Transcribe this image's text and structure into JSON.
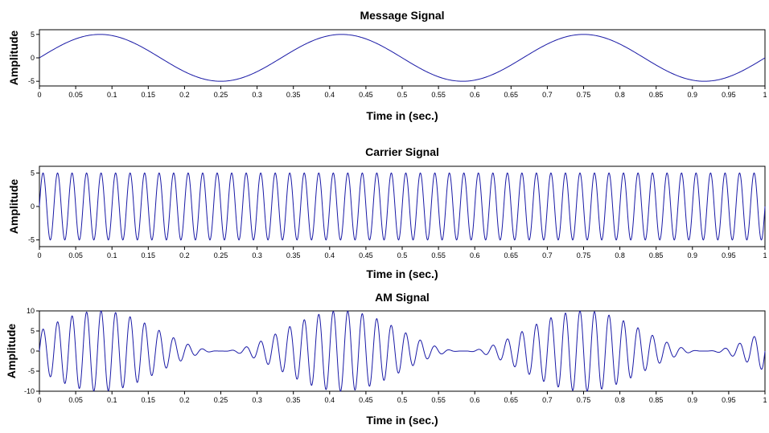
{
  "colors": {
    "line": "#1a1aa6",
    "axes": "#000000",
    "background": "#ffffff"
  },
  "chart_data": [
    {
      "type": "line",
      "title": "Message Signal",
      "xlabel": "Time in (sec.)",
      "ylabel": "Amplitude",
      "xlim": [
        0,
        1
      ],
      "ylim": [
        -6,
        6
      ],
      "xticks": [
        0,
        0.05,
        0.1,
        0.15,
        0.2,
        0.25,
        0.3,
        0.35,
        0.4,
        0.45,
        0.5,
        0.55,
        0.6,
        0.65,
        0.7,
        0.75,
        0.8,
        0.85,
        0.9,
        0.95,
        1
      ],
      "xtick_labels": [
        "0",
        "0.05",
        "0.1",
        "0.15",
        "0.2",
        "0.25",
        "0.3",
        "0.35",
        "0.4",
        "0.45",
        "0.5",
        "0.55",
        "0.6",
        "0.65",
        "0.7",
        "0.75",
        "0.8",
        "0.85",
        "0.9",
        "0.95",
        "1"
      ],
      "yticks": [
        -5,
        0,
        5
      ],
      "ytick_labels": [
        "-5",
        "0",
        "5"
      ],
      "grid": false,
      "series": [
        {
          "function": "5*sin(2*pi*3*t)",
          "amplitude": 5,
          "frequency_hz": 3,
          "t_start": 0,
          "t_end": 1,
          "samples": 800
        }
      ]
    },
    {
      "type": "line",
      "title": "Carrier Signal",
      "xlabel": "Time in (sec.)",
      "ylabel": "Amplitude",
      "xlim": [
        0,
        1
      ],
      "ylim": [
        -6,
        6
      ],
      "xticks": [
        0,
        0.05,
        0.1,
        0.15,
        0.2,
        0.25,
        0.3,
        0.35,
        0.4,
        0.45,
        0.5,
        0.55,
        0.6,
        0.65,
        0.7,
        0.75,
        0.8,
        0.85,
        0.9,
        0.95,
        1
      ],
      "xtick_labels": [
        "0",
        "0.05",
        "0.1",
        "0.15",
        "0.2",
        "0.25",
        "0.3",
        "0.35",
        "0.4",
        "0.45",
        "0.5",
        "0.55",
        "0.6",
        "0.65",
        "0.7",
        "0.75",
        "0.8",
        "0.85",
        "0.9",
        "0.95",
        "1"
      ],
      "yticks": [
        -5,
        0,
        5
      ],
      "ytick_labels": [
        "-5",
        "0",
        "5"
      ],
      "grid": false,
      "series": [
        {
          "function": "5*sin(2*pi*50*t)",
          "amplitude": 5,
          "frequency_hz": 50,
          "t_start": 0,
          "t_end": 1,
          "samples": 2400
        }
      ]
    },
    {
      "type": "line",
      "title": "AM Signal",
      "xlabel": "Time in (sec.)",
      "ylabel": "Amplitude",
      "xlim": [
        0,
        1
      ],
      "ylim": [
        -10,
        10
      ],
      "xticks": [
        0,
        0.05,
        0.1,
        0.15,
        0.2,
        0.25,
        0.3,
        0.35,
        0.4,
        0.45,
        0.5,
        0.55,
        0.6,
        0.65,
        0.7,
        0.75,
        0.8,
        0.85,
        0.9,
        0.95,
        1
      ],
      "xtick_labels": [
        "0",
        "0.05",
        "0.1",
        "0.15",
        "0.2",
        "0.25",
        "0.3",
        "0.35",
        "0.4",
        "0.45",
        "0.5",
        "0.55",
        "0.6",
        "0.65",
        "0.7",
        "0.75",
        "0.8",
        "0.85",
        "0.9",
        "0.95",
        "1"
      ],
      "yticks": [
        -10,
        -5,
        0,
        5,
        10
      ],
      "ytick_labels": [
        "-10",
        "-5",
        "0",
        "5",
        "10"
      ],
      "grid": false,
      "series": [
        {
          "function": "(5+5*sin(2*pi*3*t))*sin(2*pi*50*t)",
          "carrier_amplitude": 5,
          "message_amplitude": 5,
          "message_frequency_hz": 3,
          "carrier_frequency_hz": 50,
          "t_start": 0,
          "t_end": 1,
          "samples": 2400
        }
      ]
    }
  ]
}
